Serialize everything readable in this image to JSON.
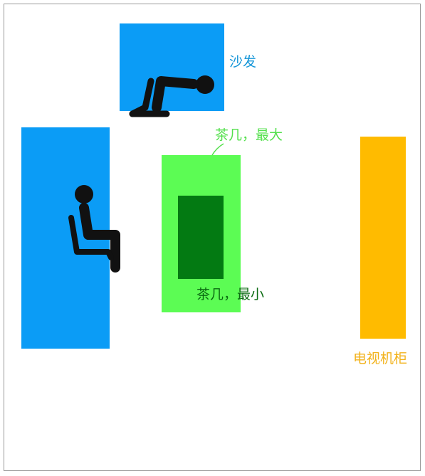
{
  "colors": {
    "sofa": "#0b9cf6",
    "table_large": "#5cfc54",
    "table_small": "#037a12",
    "tv_cabinet": "#ffbb00",
    "person": "#111111",
    "sofa_label": "#1596d8",
    "table_large_label": "#55e04e",
    "table_small_label": "#0b6b12",
    "tv_label": "#f2b21a",
    "frame": "#9a9a9a"
  },
  "labels": {
    "sofa": "沙发",
    "table_large": "茶几，最大",
    "table_small": "茶几，最小",
    "tv_cabinet": "电视机柜"
  },
  "icons": {
    "person_top": "seated-person-icon",
    "person_left": "seated-person-icon"
  }
}
